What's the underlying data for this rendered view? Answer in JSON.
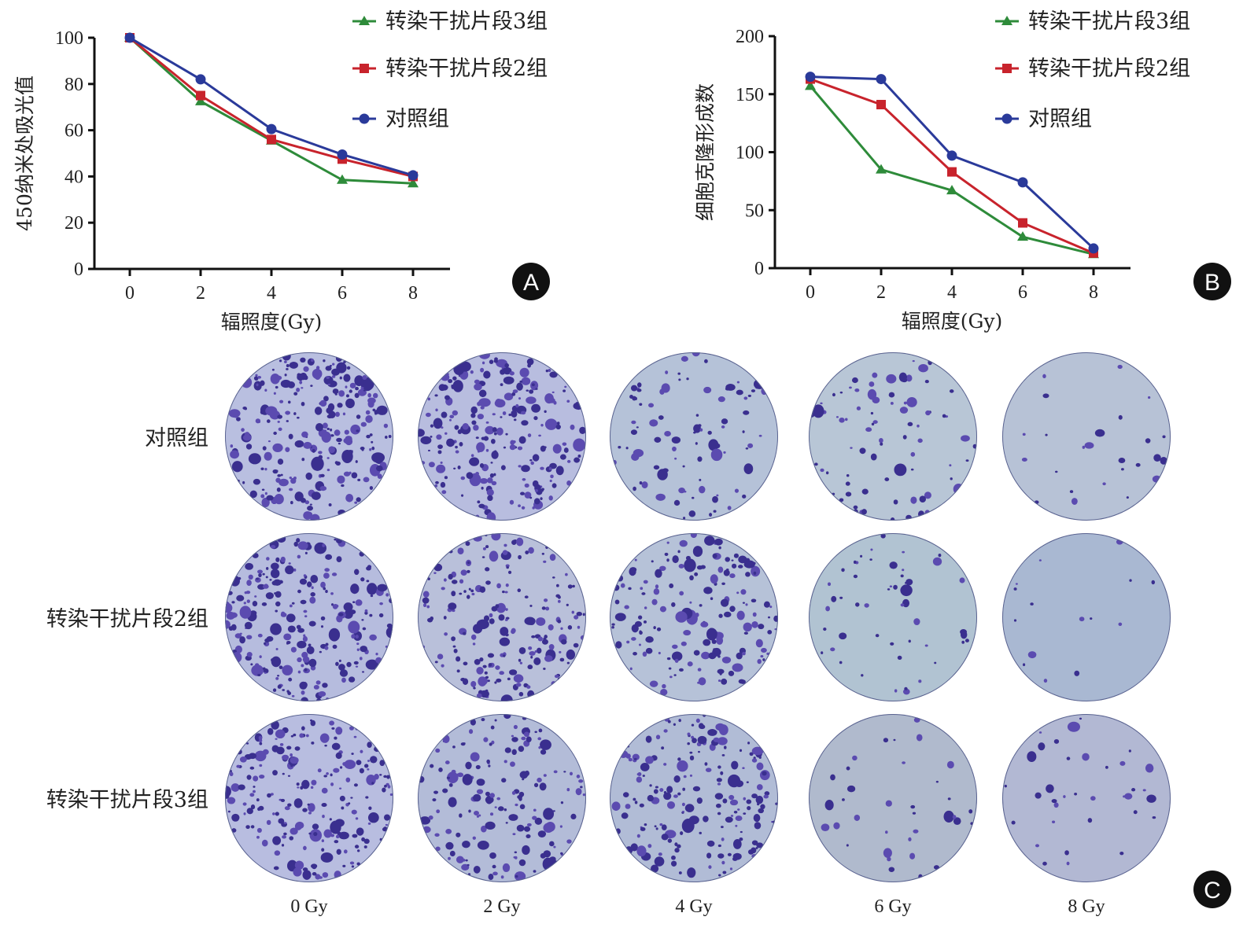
{
  "chart_data": [
    {
      "panel": "A",
      "type": "line",
      "x": [
        0,
        2,
        4,
        6,
        8
      ],
      "xlabel": "辐照度(Gy)",
      "ylabel": "450纳米处吸光值",
      "ylim": [
        0,
        100
      ],
      "yticks": [
        0,
        20,
        40,
        60,
        80,
        100
      ],
      "legend_position": "top-right",
      "series": [
        {
          "name": "转染干扰片段3组",
          "color": "#2e8b3a",
          "marker": "triangle",
          "values": [
            100,
            72.5,
            55.5,
            38.5,
            37
          ]
        },
        {
          "name": "转染干扰片段2组",
          "color": "#c8232c",
          "marker": "square",
          "values": [
            100,
            75,
            56,
            47.5,
            40
          ]
        },
        {
          "name": "对照组",
          "color": "#2a3a9a",
          "marker": "circle",
          "values": [
            100,
            82,
            60.5,
            49.5,
            40.5
          ]
        }
      ]
    },
    {
      "panel": "B",
      "type": "line",
      "x": [
        0,
        2,
        4,
        6,
        8
      ],
      "xlabel": "辐照度(Gy)",
      "ylabel": "细胞克隆形成数",
      "ylim": [
        0,
        200
      ],
      "yticks": [
        0,
        50,
        100,
        150,
        200
      ],
      "legend_position": "top-right",
      "series": [
        {
          "name": "转染干扰片段3组",
          "color": "#2e8b3a",
          "marker": "triangle",
          "values": [
            157,
            85,
            67,
            27,
            12
          ]
        },
        {
          "name": "转染干扰片段2组",
          "color": "#c8232c",
          "marker": "square",
          "values": [
            163,
            141,
            83,
            39,
            13
          ]
        },
        {
          "name": "对照组",
          "color": "#2a3a9a",
          "marker": "circle",
          "values": [
            165,
            163,
            97,
            74,
            17
          ]
        }
      ]
    }
  ],
  "panel_c": {
    "rows": [
      "对照组",
      "转染干扰片段2组",
      "转染干扰片段3组"
    ],
    "columns": [
      "0 Gy",
      "2 Gy",
      "4 Gy",
      "6 Gy",
      "8 Gy"
    ]
  },
  "panel_labels": [
    "A",
    "B",
    "C"
  ]
}
